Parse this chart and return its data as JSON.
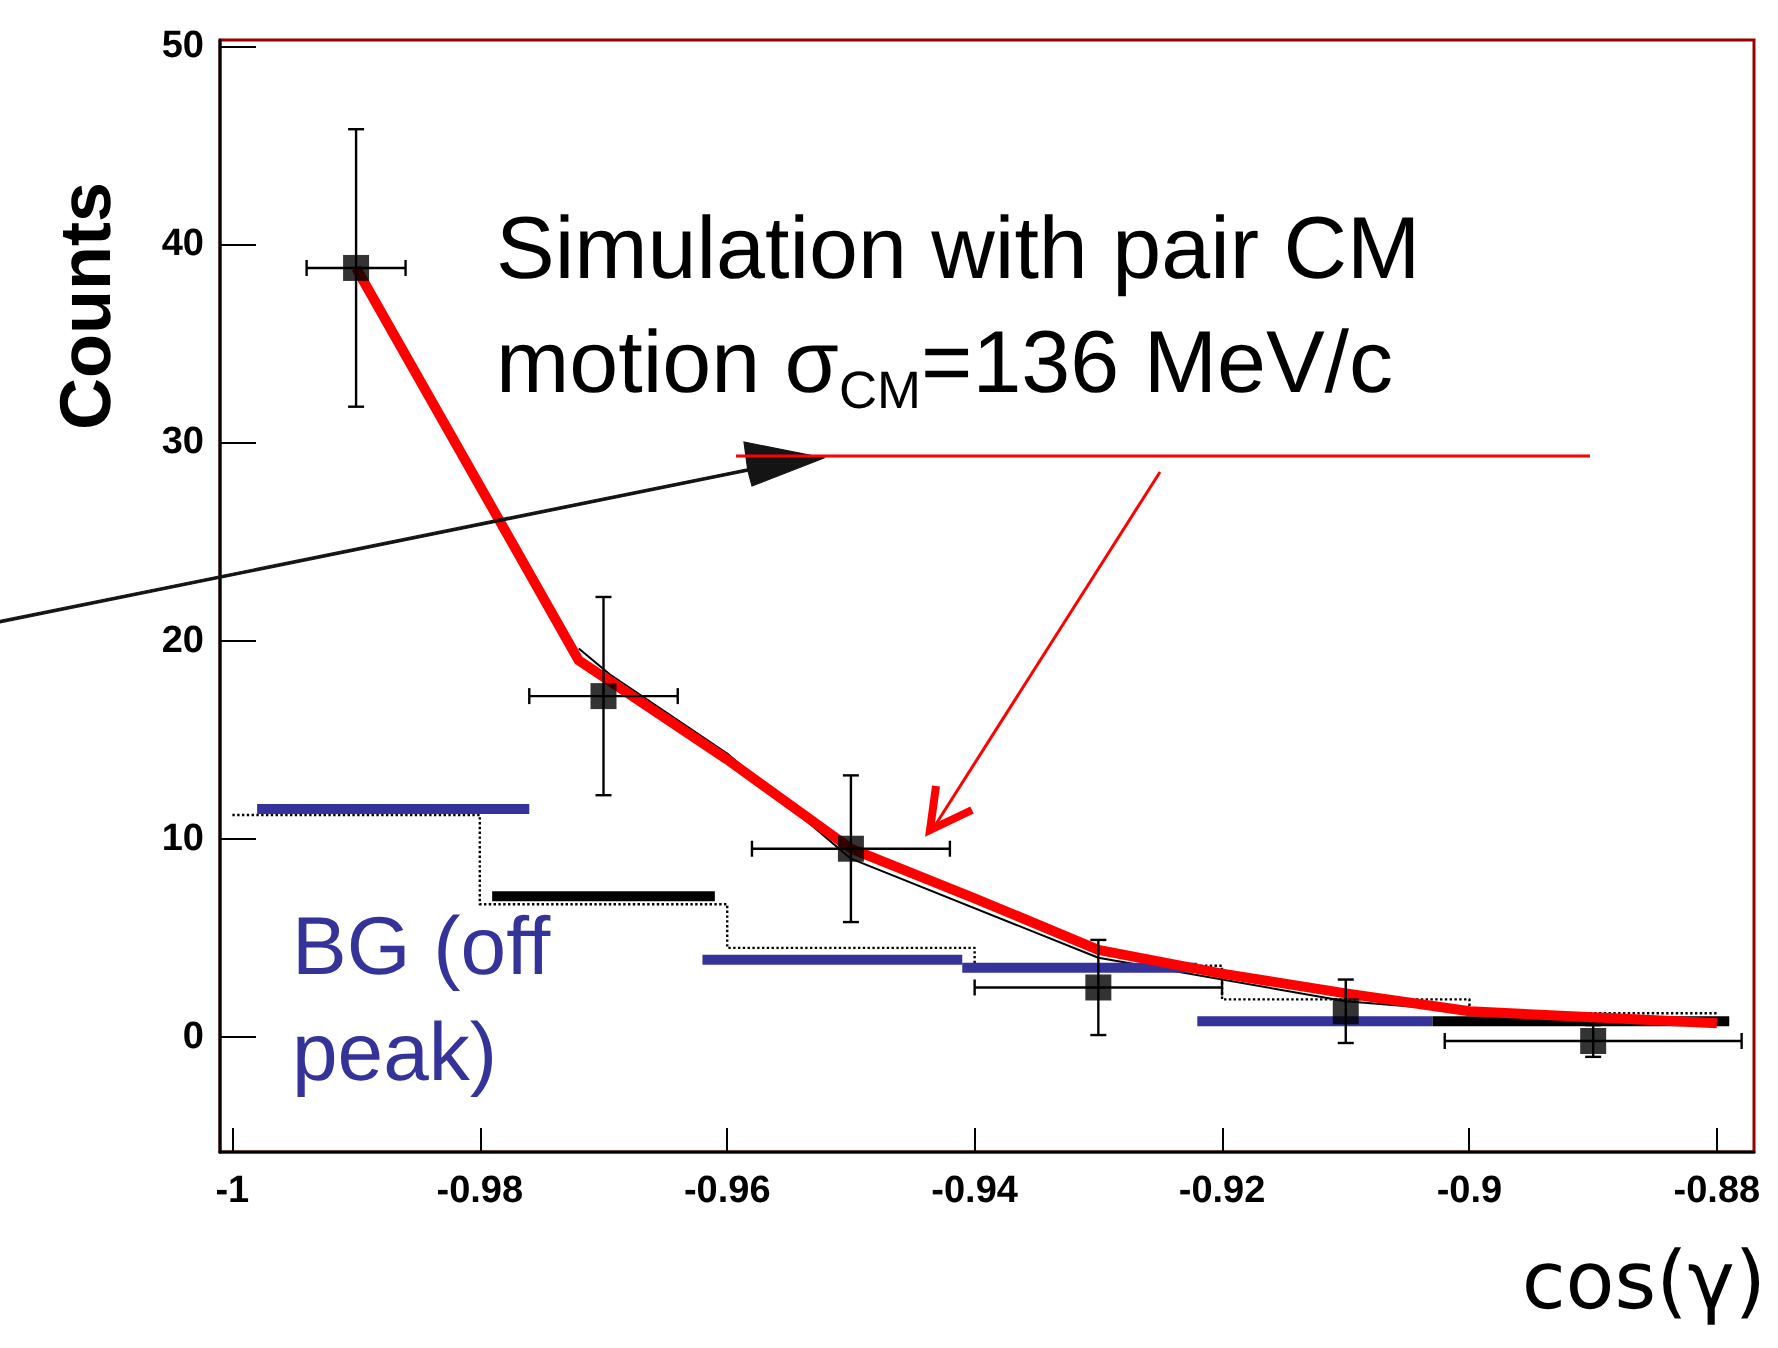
{
  "chart_data": {
    "type": "line",
    "xlabel": "cos(γ)",
    "ylabel": "Counts",
    "xlim": [
      -1.001,
      -0.877
    ],
    "ylim": [
      -5.8,
      50.3
    ],
    "xticks": [
      -1,
      -0.98,
      -0.96,
      -0.94,
      -0.92,
      -0.9,
      -0.88
    ],
    "yticks": [
      0,
      10,
      20,
      30,
      40,
      50
    ],
    "marker": "none",
    "annotations": [
      "Simulation with pair CM\nmotion σ$_{CM}$=136 MeV/c",
      "BG (off\npeak)"
    ],
    "series": [
      {
        "type": "scatter",
        "marker": "square",
        "color": "#000000",
        "x": [
          -0.99,
          -0.97,
          -0.95,
          -0.93,
          -0.91,
          -0.89
        ],
        "values": [
          38.8,
          17.2,
          9.5,
          2.5,
          1.3,
          -0.2
        ],
        "errors": [
          7,
          5,
          3.7,
          2.4,
          1.6,
          0.8
        ],
        "xerrors": [
          0.004,
          0.006,
          0.008,
          0.01,
          null,
          0.012
        ]
      },
      {
        "color": "#ff0000",
        "x": [
          -0.99,
          -0.972,
          -0.96,
          -0.95,
          -0.94,
          -0.93,
          -0.92,
          -0.91,
          -0.9,
          -0.88
        ],
        "values": [
          38.8,
          19.0,
          14.0,
          9.5,
          7.0,
          4.4,
          3.2,
          2.2,
          1.3,
          0.7
        ]
      },
      {
        "color": "#000000",
        "x": [
          -0.972,
          -0.9695,
          -0.96,
          -0.95,
          -0.93,
          -0.91,
          -0.9,
          -0.88
        ],
        "values": [
          19.6,
          18.3,
          14.3,
          9.0,
          4.0,
          1.8,
          1.3,
          0.7
        ]
      },
      {
        "color": "#33339a",
        "x": [
          -0.998,
          -0.976
        ],
        "values": [
          11.5,
          11.5
        ]
      },
      {
        "color": "#000000",
        "x": [
          -0.979,
          -0.961
        ],
        "values": [
          7.1,
          7.1
        ]
      },
      {
        "color": "#33339a",
        "x": [
          -0.962,
          -0.941
        ],
        "values": [
          3.9,
          3.9
        ]
      },
      {
        "color": "#33339a",
        "x": [
          -0.941,
          -0.922
        ],
        "values": [
          3.5,
          3.5
        ]
      },
      {
        "color": "#33339a",
        "x": [
          -0.922,
          -0.903
        ],
        "values": [
          0.8,
          0.8
        ]
      },
      {
        "color": "#000000",
        "x": [
          -0.903,
          -0.879
        ],
        "values": [
          0.8,
          0.8
        ]
      },
      {
        "type": "step",
        "color": "#000000",
        "line_style": "dotted",
        "x": [
          -1,
          -0.98,
          -0.96,
          -0.94,
          -0.92,
          -0.9,
          -0.88
        ],
        "values": [
          11.2,
          6.7,
          4.5,
          3.6,
          1.9,
          1.2,
          1.2
        ]
      }
    ]
  }
}
